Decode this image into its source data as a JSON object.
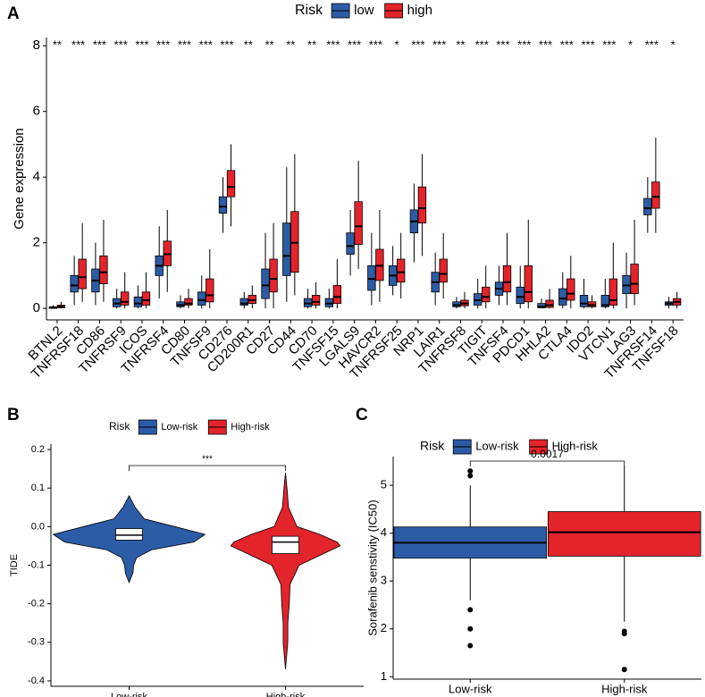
{
  "chart_data": [
    {
      "type": "box",
      "label": "A",
      "ylabel": "Gene expression",
      "legend_title": "Risk",
      "ylim": [
        -0.35,
        8.25
      ],
      "yticks": [
        0,
        2,
        4,
        6,
        8
      ],
      "categories": [
        "BTNL2",
        "TNFRSF18",
        "CD86",
        "TNFRSF9",
        "ICOS",
        "TNFRSF4",
        "CD80",
        "TNFSF9",
        "CD276",
        "CD200R1",
        "CD27",
        "CD44",
        "CD70",
        "TNFSF15",
        "LGALS9",
        "HAVCR2",
        "TNFRSF25",
        "NRP1",
        "LAIR1",
        "TNFRSF8",
        "TIGIT",
        "TNFSF4",
        "PDCD1",
        "HHLA2",
        "CTLA4",
        "IDO2",
        "VTCN1",
        "LAG3",
        "TNFRSF14",
        "TNFSF18"
      ],
      "significance": [
        "**",
        "***",
        "***",
        "***",
        "***",
        "***",
        "***",
        "***",
        "***",
        "**",
        "**",
        "**",
        "**",
        "***",
        "***",
        "***",
        "*",
        "***",
        "***",
        "**",
        "***",
        "***",
        "***",
        "***",
        "***",
        "***",
        "***",
        "*",
        "***",
        "*"
      ],
      "series": [
        {
          "name": "low",
          "color": "#2d5ca6",
          "whislo": [
            0,
            0.1,
            0.1,
            0,
            0,
            0.3,
            0,
            0,
            2.3,
            0,
            0,
            0.2,
            0,
            0,
            1.0,
            0.1,
            0.4,
            1.4,
            0.1,
            0,
            0,
            0.1,
            0,
            0,
            0,
            0,
            0,
            0,
            2.3,
            0
          ],
          "q1": [
            0,
            0.5,
            0.5,
            0.05,
            0.05,
            1.0,
            0.05,
            0.1,
            2.9,
            0.1,
            0.3,
            1.0,
            0.05,
            0.05,
            1.65,
            0.55,
            0.7,
            2.3,
            0.5,
            0.05,
            0.1,
            0.4,
            0.15,
            0.02,
            0.1,
            0.05,
            0.05,
            0.45,
            2.85,
            0.1
          ],
          "median": [
            0.02,
            0.7,
            0.85,
            0.15,
            0.15,
            1.3,
            0.1,
            0.25,
            3.1,
            0.15,
            0.7,
            1.6,
            0.15,
            0.15,
            1.9,
            0.9,
            1.0,
            2.65,
            0.8,
            0.1,
            0.25,
            0.6,
            0.35,
            0.05,
            0.3,
            0.15,
            0.1,
            0.7,
            3.05,
            0.15
          ],
          "q3": [
            0.05,
            1.0,
            1.2,
            0.3,
            0.35,
            1.6,
            0.2,
            0.5,
            3.4,
            0.3,
            1.2,
            2.6,
            0.3,
            0.3,
            2.3,
            1.3,
            1.3,
            3.0,
            1.1,
            0.2,
            0.45,
            0.8,
            0.65,
            0.15,
            0.6,
            0.4,
            0.4,
            1.0,
            3.35,
            0.2
          ],
          "whishi": [
            0.1,
            1.6,
            2.0,
            0.6,
            0.7,
            2.5,
            0.4,
            1.0,
            4.0,
            0.5,
            2.3,
            4.3,
            0.6,
            0.6,
            3.0,
            2.3,
            1.9,
            3.8,
            1.7,
            0.35,
            0.9,
            1.3,
            1.3,
            0.3,
            1.1,
            0.9,
            0.9,
            1.7,
            4.0,
            0.35
          ]
        },
        {
          "name": "high",
          "color": "#e3242b",
          "whislo": [
            0,
            0.2,
            0.2,
            0,
            0,
            0.5,
            0,
            0,
            2.5,
            0,
            0,
            0.4,
            0,
            0,
            1.2,
            0.2,
            0.3,
            1.6,
            0.3,
            0,
            0,
            0.1,
            0,
            0,
            0,
            0,
            0,
            0.1,
            2.3,
            0
          ],
          "q1": [
            0.02,
            0.6,
            0.75,
            0.1,
            0.1,
            1.3,
            0.1,
            0.2,
            3.4,
            0.15,
            0.5,
            1.1,
            0.1,
            0.15,
            1.95,
            0.85,
            0.8,
            2.6,
            0.8,
            0.08,
            0.2,
            0.5,
            0.2,
            0.03,
            0.25,
            0.05,
            0.1,
            0.45,
            3.05,
            0.1
          ],
          "median": [
            0.05,
            0.95,
            1.1,
            0.2,
            0.25,
            1.65,
            0.15,
            0.4,
            3.7,
            0.25,
            0.9,
            2.0,
            0.2,
            0.35,
            2.5,
            1.3,
            1.1,
            3.05,
            1.05,
            0.15,
            0.35,
            0.8,
            0.5,
            0.1,
            0.45,
            0.1,
            0.25,
            0.75,
            3.4,
            0.2
          ],
          "q3": [
            0.1,
            1.5,
            1.6,
            0.5,
            0.5,
            2.05,
            0.3,
            0.9,
            4.2,
            0.4,
            1.5,
            2.95,
            0.4,
            0.7,
            3.25,
            1.8,
            1.5,
            3.7,
            1.5,
            0.25,
            0.65,
            1.3,
            1.3,
            0.25,
            0.9,
            0.2,
            0.9,
            1.35,
            3.85,
            0.3
          ],
          "whishi": [
            0.2,
            2.6,
            2.7,
            1.1,
            1.1,
            3.0,
            0.6,
            1.8,
            5.0,
            0.7,
            2.6,
            4.7,
            0.8,
            1.5,
            4.5,
            3.0,
            2.3,
            4.7,
            2.3,
            0.5,
            1.3,
            2.3,
            2.7,
            0.6,
            1.6,
            0.4,
            2.0,
            2.7,
            5.2,
            0.5
          ]
        }
      ]
    },
    {
      "type": "violin",
      "label": "B",
      "ylabel": "TIDE",
      "legend_title": "Risk",
      "annotation": "***",
      "ylim": [
        -0.414,
        0.214
      ],
      "yticks": [
        -0.4,
        -0.3,
        -0.2,
        -0.1,
        {
          "value": 0,
          "label": "0.0"
        },
        0.1,
        0.2
      ],
      "categories": [
        "Low-risk",
        "High-risk"
      ],
      "series": [
        {
          "name": "Low-risk",
          "color": "#2d5ca6",
          "violin_y": [
            0.08,
            0.05,
            0.02,
            0,
            -0.02,
            -0.04,
            -0.06,
            -0.08,
            -0.1,
            -0.12,
            -0.145
          ],
          "violin_width": [
            0,
            0.08,
            0.2,
            0.6,
            1,
            0.85,
            0.3,
            0.1,
            0.06,
            0.05,
            0
          ],
          "q1": -0.035,
          "median": -0.022,
          "q3": -0.005
        },
        {
          "name": "High-risk",
          "color": "#e3242b",
          "violin_y": [
            0.14,
            0.1,
            0.05,
            0,
            -0.02,
            -0.04,
            -0.05,
            -0.07,
            -0.1,
            -0.15,
            -0.2,
            -0.25,
            -0.3,
            -0.37
          ],
          "violin_width": [
            0,
            0.02,
            0.04,
            0.15,
            0.45,
            0.68,
            0.72,
            0.5,
            0.18,
            0.06,
            0.05,
            0.03,
            0.03,
            0
          ],
          "q1": -0.07,
          "median": -0.04,
          "q3": -0.025
        }
      ]
    },
    {
      "type": "box",
      "label": "C",
      "ylabel": "Sorafenib senstivity (IC50)",
      "legend_title": "Risk",
      "annotation": "0.0017",
      "ylim": [
        0.95,
        5.6
      ],
      "yticks": [
        1,
        2,
        3,
        4,
        5
      ],
      "categories": [
        "Low-risk",
        "High-risk"
      ],
      "series": [
        {
          "name": "Low-risk",
          "color": "#2d5ca6",
          "whislo": 2.6,
          "q1": 3.48,
          "median": 3.8,
          "q3": 4.13,
          "whishi": 5.0,
          "outliers": [
            5.3,
            5.2,
            2.4,
            2.0,
            1.65
          ]
        },
        {
          "name": "High-risk",
          "color": "#e3242b",
          "whislo": 2.15,
          "q1": 3.52,
          "median": 4.02,
          "q3": 4.45,
          "whishi": 5.4,
          "outliers": [
            1.95,
            1.9,
            1.15
          ]
        }
      ]
    }
  ]
}
